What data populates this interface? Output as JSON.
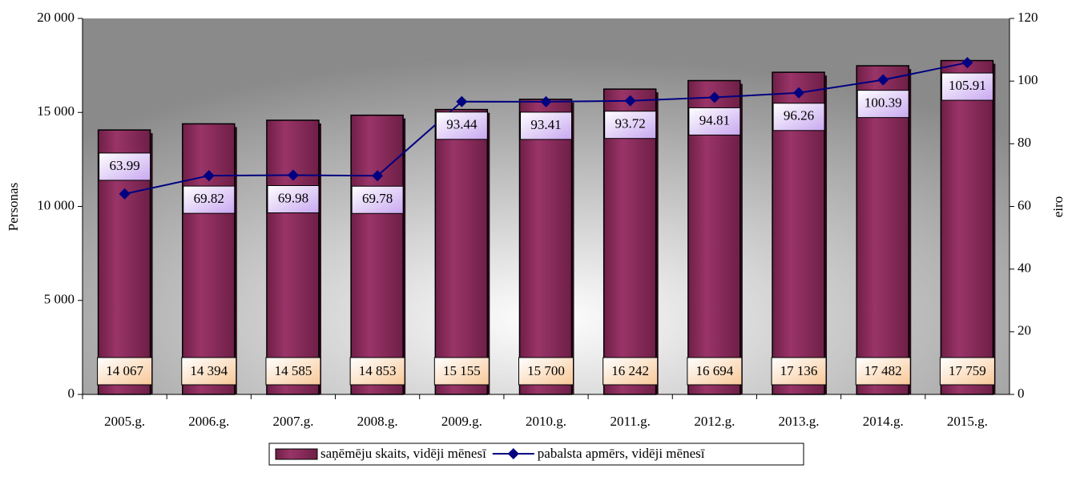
{
  "chart_data": {
    "type": "bar-line",
    "categories": [
      "2005.g.",
      "2006.g.",
      "2007.g.",
      "2008.g.",
      "2009.g.",
      "2010.g.",
      "2011.g.",
      "2012.g.",
      "2013.g.",
      "2014.g.",
      "2015.g."
    ],
    "series": [
      {
        "name": "saņēmēju skaits, vidēji mēnesī",
        "type": "bar",
        "color": "#8c2a5c",
        "values": [
          14067,
          14394,
          14585,
          14853,
          15155,
          15700,
          16242,
          16694,
          17136,
          17482,
          17759
        ],
        "value_labels": [
          "14 067",
          "14 394",
          "14 585",
          "14 853",
          "15 155",
          "15 700",
          "16 242",
          "16 694",
          "17 136",
          "17 482",
          "17 759"
        ]
      },
      {
        "name": "pabalsta apmērs, vidēji mēnesī",
        "type": "line",
        "color": "#000080",
        "axis": "y2",
        "values": [
          63.99,
          69.82,
          69.98,
          69.78,
          93.44,
          93.41,
          93.72,
          94.81,
          96.26,
          100.39,
          105.91
        ]
      }
    ],
    "ylabel": "Personas",
    "y2label": "eiro",
    "ylim": [
      0,
      20000
    ],
    "yticks": [
      0,
      {
        "value": 5000,
        "label": "5 000"
      },
      {
        "value": 10000,
        "label": "10 000"
      },
      {
        "value": 15000,
        "label": "15 000"
      },
      {
        "value": 20000,
        "label": "20 000"
      }
    ],
    "y2lim": [
      0,
      120
    ],
    "y2ticks": [
      0,
      20,
      40,
      60,
      80,
      100,
      120
    ]
  }
}
